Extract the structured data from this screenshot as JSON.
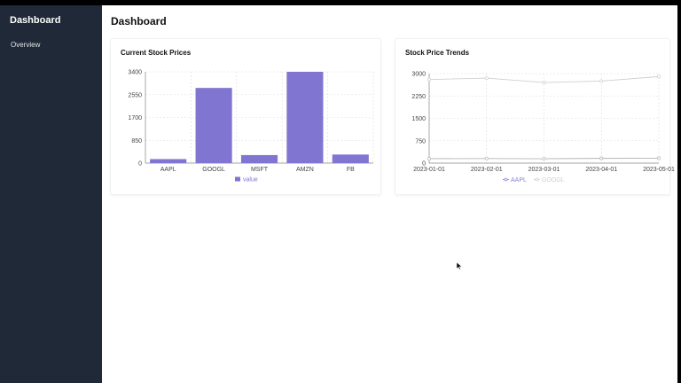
{
  "sidebar": {
    "title": "Dashboard",
    "items": [
      {
        "label": "Overview"
      }
    ]
  },
  "header": {
    "title": "Dashboard"
  },
  "colors": {
    "sidebar_bg": "#1f2937",
    "bar": "#8075d0",
    "line_googl": "#cfcfcf",
    "line_aapl": "#b5b5b5",
    "legend_aapl": "#8884d8",
    "grid": "#dddddd"
  },
  "cards": [
    {
      "title": "Current Stock Prices"
    },
    {
      "title": "Stock Price Trends"
    }
  ],
  "chart_data": [
    {
      "type": "bar",
      "title": "Current Stock Prices",
      "categories": [
        "AAPL",
        "GOOGL",
        "MSFT",
        "AMZN",
        "FB"
      ],
      "series": [
        {
          "name": "value",
          "values": [
            150,
            2800,
            300,
            3400,
            320
          ]
        }
      ],
      "ylim": [
        0,
        3400
      ],
      "yticks": [
        "0",
        "850",
        "1700",
        "2550",
        "3400"
      ],
      "grid": true,
      "legend": "bottom"
    },
    {
      "type": "line",
      "title": "Stock Price Trends",
      "x": [
        "2023-01-01",
        "2023-02-01",
        "2023-03-01",
        "2023-04-01",
        "2023-05-01"
      ],
      "series": [
        {
          "name": "AAPL",
          "values": [
            150,
            155,
            148,
            160,
            165
          ]
        },
        {
          "name": "GOOGL",
          "values": [
            2800,
            2850,
            2700,
            2750,
            2900
          ]
        }
      ],
      "ylim": [
        0,
        3000
      ],
      "yticks": [
        "0",
        "750",
        "1500",
        "2250",
        "3000"
      ],
      "grid": true,
      "legend": "bottom"
    }
  ]
}
